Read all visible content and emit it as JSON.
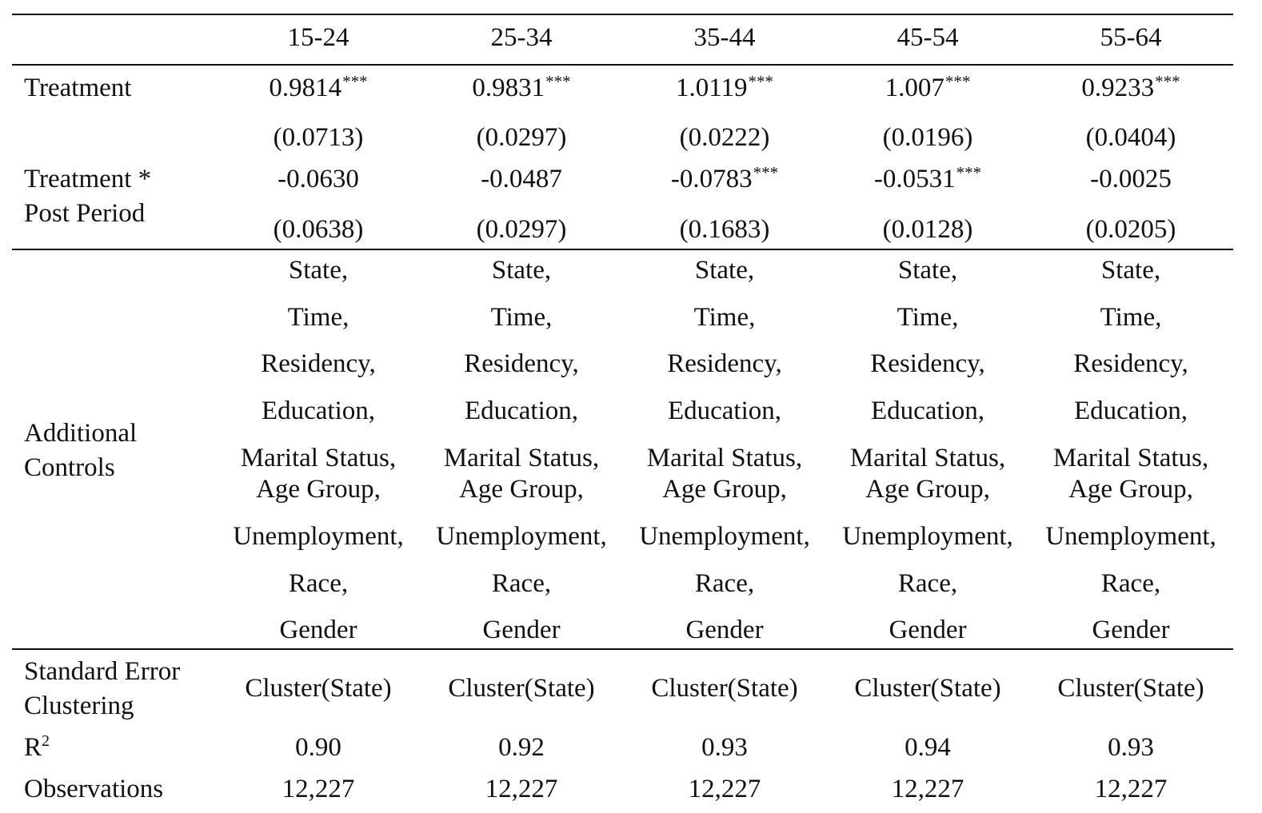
{
  "columns": [
    "15-24",
    "25-34",
    "35-44",
    "45-54",
    "55-64"
  ],
  "rows": {
    "treatment": {
      "label": "Treatment",
      "coef": [
        "0.9814",
        "0.9831",
        "1.0119",
        "1.007",
        "0.9233"
      ],
      "stars": [
        "***",
        "***",
        "***",
        "***",
        "***"
      ],
      "se": [
        "(0.0713)",
        "(0.0297)",
        "(0.0222)",
        "(0.0196)",
        "(0.0404)"
      ]
    },
    "interaction": {
      "label_line1": "Treatment *",
      "label_line2": "Post Period",
      "coef": [
        "-0.0630",
        "-0.0487",
        "-0.0783",
        "-0.0531",
        "-0.0025"
      ],
      "stars": [
        "",
        "",
        "***",
        "***",
        ""
      ],
      "se": [
        "(0.0638)",
        "(0.0297)",
        "(0.1683)",
        "(0.0128)",
        "(0.0205)"
      ]
    },
    "controls": {
      "label_line1": "Additional",
      "label_line2": "Controls",
      "items": [
        "State,",
        "Time,",
        "Residency,",
        "Education,",
        "Marital Status,",
        "Age Group,",
        "Unemployment,",
        "Race,",
        "Gender"
      ]
    },
    "clustering": {
      "label_line1": "Standard Error",
      "label_line2": "Clustering",
      "value": "Cluster(State)"
    },
    "r2": {
      "label": "R",
      "label_sup": "2",
      "values": [
        "0.90",
        "0.92",
        "0.93",
        "0.94",
        "0.93"
      ]
    },
    "observations": {
      "label": "Observations",
      "values": [
        "12,227",
        "12,227",
        "12,227",
        "12,227",
        "12,227"
      ]
    }
  }
}
